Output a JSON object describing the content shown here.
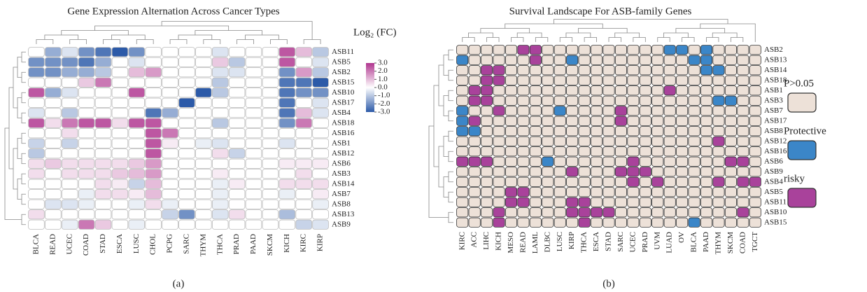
{
  "chart_data": [
    {
      "type": "heatmap",
      "title": "Gene Expression Alternation Across Cancer Types",
      "caption": "(a)",
      "columns": [
        "BLCA",
        "READ",
        "UCEC",
        "COAD",
        "STAD",
        "ESCA",
        "LUSC",
        "CHOL",
        "PCPG",
        "SARC",
        "THYM",
        "THCA",
        "PRAD",
        "PAAD",
        "SKCM",
        "KICH",
        "KIRC",
        "KIRP"
      ],
      "rows": [
        "ASB11",
        "ASB5",
        "ASB2",
        "ASB15",
        "ASB10",
        "ASB17",
        "ASB4",
        "ASB18",
        "ASB16",
        "ASB1",
        "ASB12",
        "ASB6",
        "ASB3",
        "ASB14",
        "ASB7",
        "ASB8",
        "ASB13",
        "ASB9"
      ],
      "values": [
        [
          0,
          -1.5,
          -0.5,
          -2,
          -2.5,
          -3,
          -2,
          0,
          0,
          0,
          0,
          -0.5,
          0,
          0,
          0,
          2.5,
          1,
          -1
        ],
        [
          -2,
          -2,
          -2,
          -2.5,
          -1.5,
          0,
          -0.5,
          0,
          0,
          0,
          0,
          0.8,
          -1,
          0,
          0,
          2.5,
          0,
          -0.5
        ],
        [
          -2,
          -2,
          -1.5,
          -1.5,
          -1,
          0,
          1,
          1.5,
          0,
          0,
          0,
          -0.5,
          -0.5,
          0,
          0,
          -2,
          1.5,
          -1
        ],
        [
          0,
          0,
          0,
          0.8,
          2,
          0,
          0,
          0,
          0,
          0,
          0,
          -1,
          0,
          0,
          0,
          -2.5,
          -2.5,
          -3
        ],
        [
          2.5,
          -1.5,
          -0.5,
          0,
          0,
          0,
          2.5,
          0,
          0,
          0,
          -3,
          -1,
          0,
          0,
          0,
          -2.5,
          -2,
          -2
        ],
        [
          0,
          0,
          0,
          0,
          0,
          0,
          0,
          0,
          0,
          -3,
          0,
          0,
          0,
          0,
          0,
          -2.5,
          0,
          -0.5
        ],
        [
          -0.5,
          0,
          -1,
          0,
          0,
          0,
          0,
          -2.5,
          -1.5,
          0,
          0,
          0,
          0,
          0,
          0,
          -2.5,
          1,
          -0.5
        ],
        [
          2.5,
          0.5,
          2,
          2.5,
          2.5,
          0.5,
          2.5,
          2.5,
          0,
          0,
          0,
          -1,
          0,
          0,
          0,
          -2,
          2,
          0
        ],
        [
          0,
          0,
          0.5,
          0,
          0,
          0,
          0,
          2.5,
          2,
          0,
          0,
          0,
          0,
          0,
          0,
          0,
          0,
          0
        ],
        [
          -0.8,
          0,
          -0.8,
          0,
          0,
          0,
          0,
          2.5,
          0.3,
          0,
          -0.3,
          -0.5,
          0,
          0,
          0,
          -0.5,
          0,
          0
        ],
        [
          -1,
          0,
          0,
          0,
          0,
          0,
          0,
          2.5,
          0,
          0,
          0,
          0.5,
          -0.8,
          0,
          0,
          0,
          0,
          0
        ],
        [
          0.5,
          0.8,
          0.5,
          0.5,
          0.5,
          0.5,
          0.8,
          1.5,
          0,
          0,
          0,
          0,
          0,
          0,
          0,
          0.3,
          0.3,
          0.3
        ],
        [
          0.5,
          0,
          0.5,
          0.5,
          0.5,
          0.8,
          1,
          1.5,
          0,
          0,
          0,
          0.3,
          0,
          0,
          0,
          0,
          0.5,
          0
        ],
        [
          0,
          0,
          0,
          0,
          0.5,
          0.3,
          -0.8,
          1,
          0,
          0,
          0,
          -0.3,
          0.3,
          0,
          0,
          0.5,
          0.5,
          0.5
        ],
        [
          0,
          0,
          0,
          -0.3,
          0.5,
          0.5,
          0.3,
          1,
          0,
          0,
          0,
          -0.3,
          0,
          0,
          0,
          -0.3,
          0,
          0.3
        ],
        [
          0,
          -0.5,
          -0.5,
          -0.3,
          0,
          0,
          -0.3,
          0.5,
          -0.3,
          0,
          0,
          -0.3,
          0,
          0,
          0,
          0,
          0,
          -0.3
        ],
        [
          0.5,
          0,
          0,
          0,
          0,
          0,
          0,
          0,
          -0.8,
          -2,
          0,
          -0.5,
          0.5,
          0,
          0,
          -1.2,
          0,
          0
        ],
        [
          0,
          0,
          -0.3,
          2,
          0.8,
          0,
          -0.3,
          0,
          0,
          0,
          0,
          0,
          0,
          0,
          0,
          0,
          -0.8,
          -0.5
        ]
      ],
      "colorbar": {
        "title": "Log₂ (FC)",
        "lim": [
          -3,
          3
        ],
        "colors": [
          "#2c5aa8",
          "#ffffff",
          "#b0358f"
        ],
        "ticks": [
          {
            "value": 3,
            "label": "3.0"
          },
          {
            "value": 2,
            "label": "2.0"
          },
          {
            "value": 1,
            "label": "1.0"
          },
          {
            "value": 0,
            "label": "0.0"
          },
          {
            "value": -1,
            "label": "-1.0"
          },
          {
            "value": -2,
            "label": "-2.0"
          },
          {
            "value": -3,
            "label": "-3.0"
          }
        ]
      }
    },
    {
      "type": "heatmap",
      "title": "Survival Landscape For ASB-family Genes",
      "caption": "(b)",
      "columns": [
        "KIRC",
        "ACC",
        "LIHC",
        "KICH",
        "MESO",
        "READ",
        "LAML",
        "DLBC",
        "LUSC",
        "KIRP",
        "THCA",
        "ESCA",
        "STAD",
        "SARC",
        "UCEC",
        "PRAD",
        "UVM",
        "LUAD",
        "OV",
        "BLCA",
        "PAAD",
        "THYM",
        "SKCM",
        "COAD",
        "TGCT"
      ],
      "rows": [
        "ASB2",
        "ASB13",
        "ASB14",
        "ASB18",
        "ASB1",
        "ASB3",
        "ASB7",
        "ASB17",
        "ASB8",
        "ASB12",
        "ASB16",
        "ASB6",
        "ASB9",
        "ASB4",
        "ASB5",
        "ASB11",
        "ASB10",
        "ASB15"
      ],
      "legend": [
        {
          "name": "P>0.05",
          "color": "#ede1d8"
        },
        {
          "name": "Protective",
          "color": "#3b86c8"
        },
        {
          "name": "risky",
          "color": "#a9429b"
        }
      ],
      "values": [
        [
          0,
          0,
          0,
          0,
          0,
          2,
          2,
          0,
          0,
          0,
          0,
          0,
          0,
          0,
          0,
          0,
          0,
          1,
          1,
          0,
          1,
          0,
          0,
          0,
          0
        ],
        [
          1,
          0,
          0,
          0,
          0,
          0,
          2,
          0,
          0,
          1,
          0,
          0,
          0,
          0,
          0,
          0,
          0,
          0,
          0,
          1,
          1,
          0,
          0,
          0,
          0
        ],
        [
          0,
          0,
          2,
          2,
          0,
          0,
          0,
          0,
          0,
          0,
          0,
          0,
          0,
          0,
          0,
          0,
          0,
          0,
          0,
          0,
          1,
          1,
          0,
          0,
          0
        ],
        [
          0,
          0,
          2,
          2,
          0,
          0,
          0,
          0,
          0,
          0,
          0,
          0,
          0,
          0,
          0,
          0,
          0,
          0,
          0,
          0,
          0,
          0,
          0,
          0,
          0
        ],
        [
          0,
          2,
          2,
          0,
          0,
          0,
          0,
          0,
          0,
          0,
          0,
          0,
          0,
          0,
          0,
          0,
          0,
          2,
          0,
          0,
          0,
          0,
          0,
          0,
          0
        ],
        [
          0,
          2,
          2,
          0,
          0,
          0,
          0,
          0,
          0,
          0,
          0,
          0,
          0,
          0,
          0,
          0,
          0,
          0,
          0,
          0,
          0,
          1,
          1,
          0,
          0
        ],
        [
          1,
          0,
          0,
          2,
          0,
          0,
          0,
          0,
          1,
          0,
          0,
          0,
          0,
          2,
          0,
          0,
          0,
          0,
          0,
          0,
          0,
          0,
          0,
          0,
          0
        ],
        [
          1,
          2,
          0,
          0,
          0,
          0,
          0,
          0,
          0,
          0,
          0,
          0,
          0,
          2,
          0,
          0,
          0,
          0,
          0,
          0,
          0,
          0,
          0,
          0,
          0
        ],
        [
          1,
          1,
          0,
          0,
          0,
          0,
          0,
          0,
          0,
          0,
          0,
          0,
          0,
          0,
          0,
          0,
          0,
          0,
          0,
          0,
          0,
          0,
          0,
          0,
          0
        ],
        [
          0,
          0,
          0,
          0,
          0,
          0,
          0,
          0,
          0,
          0,
          0,
          0,
          0,
          0,
          0,
          0,
          0,
          0,
          0,
          0,
          0,
          2,
          0,
          0,
          0
        ],
        [
          0,
          0,
          0,
          0,
          0,
          0,
          0,
          0,
          0,
          0,
          0,
          0,
          0,
          0,
          0,
          0,
          0,
          0,
          0,
          0,
          0,
          0,
          0,
          0,
          0
        ],
        [
          2,
          2,
          2,
          0,
          0,
          0,
          0,
          1,
          0,
          0,
          0,
          0,
          0,
          0,
          2,
          0,
          0,
          0,
          0,
          0,
          0,
          0,
          2,
          2,
          0
        ],
        [
          0,
          0,
          0,
          0,
          0,
          0,
          0,
          0,
          0,
          2,
          0,
          0,
          0,
          2,
          2,
          2,
          0,
          0,
          0,
          0,
          0,
          0,
          0,
          0,
          0
        ],
        [
          0,
          0,
          0,
          0,
          0,
          0,
          0,
          0,
          0,
          0,
          0,
          0,
          0,
          0,
          2,
          0,
          2,
          0,
          0,
          0,
          0,
          2,
          0,
          2,
          2
        ],
        [
          0,
          0,
          0,
          0,
          2,
          2,
          0,
          0,
          0,
          0,
          0,
          0,
          0,
          0,
          0,
          0,
          0,
          0,
          0,
          0,
          0,
          0,
          0,
          0,
          0
        ],
        [
          0,
          0,
          0,
          0,
          2,
          2,
          0,
          0,
          0,
          2,
          2,
          0,
          0,
          0,
          0,
          0,
          0,
          0,
          0,
          0,
          0,
          0,
          0,
          0,
          0
        ],
        [
          0,
          0,
          0,
          2,
          0,
          0,
          0,
          0,
          0,
          2,
          2,
          2,
          2,
          0,
          0,
          0,
          0,
          0,
          0,
          0,
          0,
          0,
          0,
          2,
          0
        ],
        [
          0,
          0,
          0,
          2,
          0,
          0,
          0,
          0,
          0,
          0,
          2,
          0,
          0,
          0,
          0,
          0,
          0,
          0,
          0,
          1,
          0,
          0,
          0,
          0,
          0
        ]
      ]
    }
  ]
}
